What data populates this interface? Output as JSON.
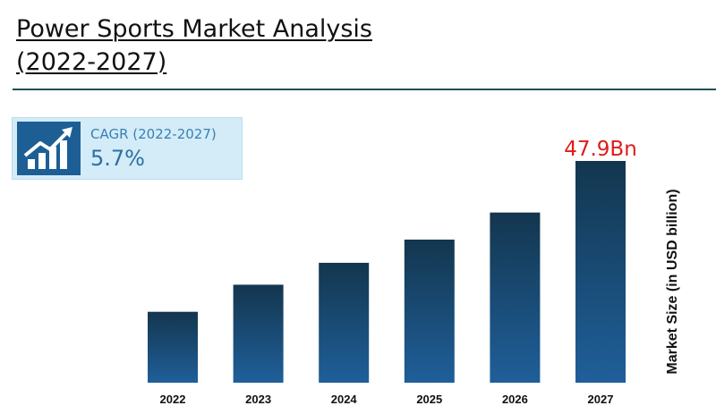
{
  "title_line1": "Power Sports Market Analysis",
  "title_line2": "(2022-2027)",
  "cagr": {
    "label": "CAGR (2022-2027)",
    "value": "5.7%",
    "icon": "growth-chart-icon"
  },
  "colors": {
    "bar_top": "#13364e",
    "bar_bottom": "#1f5f9a",
    "highlight": "#e01b1b",
    "rule": "#1e4f5a"
  },
  "chart_data": {
    "type": "bar",
    "categories": [
      "2022",
      "2023",
      "2024",
      "2025",
      "2026",
      "2027"
    ],
    "values": [
      36.2,
      38.3,
      40.0,
      41.8,
      43.9,
      47.9
    ],
    "ylabel": "Market Size (in USD billion)",
    "ylim": [
      30.7,
      47.9
    ],
    "annotation": {
      "category": "2027",
      "text": "47.9Bn"
    },
    "grid": false,
    "legend": "none"
  }
}
